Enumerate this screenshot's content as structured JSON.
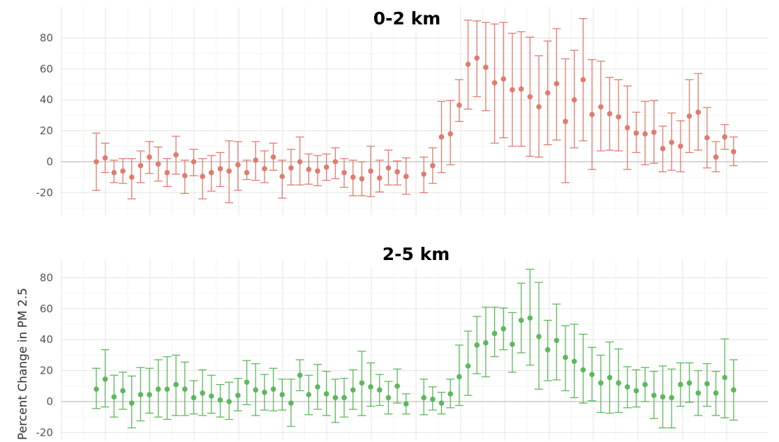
{
  "chart_data": [
    {
      "type": "scatter",
      "title": "0-2 km",
      "ylabel": "",
      "ylim": [
        -30,
        100
      ],
      "yticks": [
        -20,
        0,
        20,
        40,
        60,
        80
      ],
      "ytick_labels": [
        "-20",
        "0",
        "20",
        "40",
        "60",
        "80"
      ],
      "color": "#e07b6e",
      "grid": true,
      "series": [
        {
          "values": [
            0,
            2.5,
            -7,
            -6,
            -10,
            -2.5,
            3,
            -1.5,
            -7,
            4.5,
            -9,
            0,
            -9.5,
            -7,
            -4.5,
            -6,
            -2,
            -7,
            1,
            -4.5,
            3,
            -9.5,
            -4,
            0,
            -5,
            -6,
            -3.5,
            0,
            -7,
            -10,
            -11,
            -6,
            -10.5,
            -4,
            -6.5,
            -9.5,
            null,
            -8,
            -2.5,
            16,
            18,
            36.5,
            63,
            67,
            61,
            51,
            53.5,
            46.5,
            47,
            42,
            35.5,
            44.5,
            50.5,
            26,
            40,
            53,
            30.5,
            35.5,
            31,
            29,
            22,
            18.5,
            18,
            19,
            8.5,
            12.5,
            10,
            29.5,
            32,
            15.5,
            3,
            16,
            6.5
          ],
          "upper": [
            18.5,
            12,
            1,
            2,
            2,
            7,
            13,
            9.5,
            2,
            16.5,
            1,
            8,
            2,
            4,
            6,
            13.5,
            13,
            1,
            13,
            7,
            12,
            1,
            8,
            16,
            5,
            4,
            5,
            9,
            2,
            1,
            0,
            10,
            1,
            7.5,
            0.5,
            2.5,
            null,
            3,
            9,
            39,
            39.5,
            53,
            91.5,
            91,
            90,
            89,
            90,
            83,
            84,
            80.5,
            68.5,
            78,
            86,
            66.5,
            72,
            92.5,
            66,
            65,
            54.5,
            53,
            49,
            32,
            39,
            39.5,
            23,
            31.5,
            26.5,
            53,
            57,
            35,
            13,
            24,
            16
          ],
          "lower": [
            -18.5,
            -7,
            -13.5,
            -14,
            -24,
            -13.5,
            -7.5,
            -12.5,
            -16,
            -8,
            -20.5,
            -9,
            -24,
            -19,
            -16,
            -26.5,
            -18.5,
            -11.5,
            -12,
            -13.5,
            -5.5,
            -23.5,
            -15,
            -15,
            -14.5,
            -15.5,
            -12,
            -11,
            -16.5,
            -22,
            -22,
            -22.5,
            -19.5,
            -15,
            -15,
            -21,
            null,
            -20,
            -14,
            -7,
            -2,
            26,
            34,
            42,
            33,
            12,
            15.5,
            10,
            10,
            3.5,
            3,
            11,
            14,
            -13.5,
            9,
            13.5,
            -5,
            7,
            7.5,
            7,
            -5,
            6,
            -2,
            -1,
            -6.5,
            -5.5,
            -6.5,
            6,
            7.5,
            -4,
            -6.5,
            8,
            -2.5
          ]
        }
      ]
    },
    {
      "type": "scatter",
      "title": "2-5 km",
      "ylabel": "Percent Change in PM 2.5",
      "ylim": [
        -25,
        95
      ],
      "yticks": [
        -20,
        0,
        20,
        40,
        60,
        80
      ],
      "ytick_labels": [
        "-20",
        "0",
        "20",
        "40",
        "60",
        "80"
      ],
      "color": "#5cb85c",
      "grid": true,
      "series": [
        {
          "values": [
            8,
            14.5,
            3,
            7,
            -1,
            4.5,
            4.5,
            8,
            8,
            11,
            8,
            2.5,
            5.5,
            3.5,
            1,
            0,
            4,
            12.5,
            7.5,
            6,
            8,
            4.5,
            -1,
            17,
            4.5,
            9.5,
            5,
            2.5,
            2.5,
            7.5,
            12,
            9.5,
            7.5,
            2.5,
            10,
            -1.5,
            null,
            2.5,
            1.5,
            -1,
            5,
            16,
            23,
            36.5,
            38,
            44,
            47,
            37,
            52.5,
            54,
            42,
            33.5,
            39.5,
            28.5,
            26,
            20.5,
            17.5,
            12,
            15.5,
            12,
            9.5,
            7,
            11,
            4,
            3,
            2.5,
            11,
            12,
            5.5,
            11.5,
            5.5,
            15.5,
            7.5
          ],
          "upper": [
            21.5,
            33.5,
            17,
            19,
            16.5,
            22,
            21.5,
            27,
            29,
            30,
            25.5,
            13.5,
            20.5,
            17,
            11,
            12.5,
            15,
            26.5,
            24.5,
            17.5,
            21.5,
            14.5,
            14.5,
            27,
            17,
            24,
            19.5,
            14.5,
            15,
            20.5,
            32.5,
            25,
            17.5,
            13,
            21,
            5,
            null,
            14.5,
            9.5,
            6,
            14.5,
            36.5,
            45.5,
            55,
            61,
            61,
            60.5,
            57.5,
            76.5,
            85.5,
            77,
            52.5,
            63,
            49,
            50,
            43.5,
            35,
            30,
            38.5,
            34,
            22.5,
            20.5,
            22,
            19.5,
            23,
            21,
            25,
            25,
            20,
            24.5,
            19.5,
            40.5,
            27
          ],
          "lower": [
            -4.5,
            -3.5,
            -10,
            -5,
            -17,
            -12.5,
            -7.5,
            -10,
            -11.5,
            -9,
            -9,
            -8,
            -9,
            -7.5,
            -10,
            -11.5,
            -6,
            -2,
            -9,
            -5.5,
            -6,
            -5.5,
            -16,
            7,
            -8.5,
            -5,
            -9,
            -13.5,
            -10,
            -5,
            -9,
            -3,
            -2.5,
            -8,
            -1,
            -8,
            null,
            -8.5,
            -5.5,
            -8,
            -4,
            -2.5,
            4,
            18,
            16,
            29,
            33.5,
            19,
            31.5,
            23.5,
            8,
            13.5,
            14,
            7,
            2.5,
            -1,
            0.5,
            -7,
            -7.5,
            -7,
            -4,
            -3.5,
            0,
            -11,
            -17,
            -17,
            -3,
            -0.5,
            -9,
            -3,
            -9,
            -10.5,
            -12
          ]
        }
      ]
    }
  ]
}
